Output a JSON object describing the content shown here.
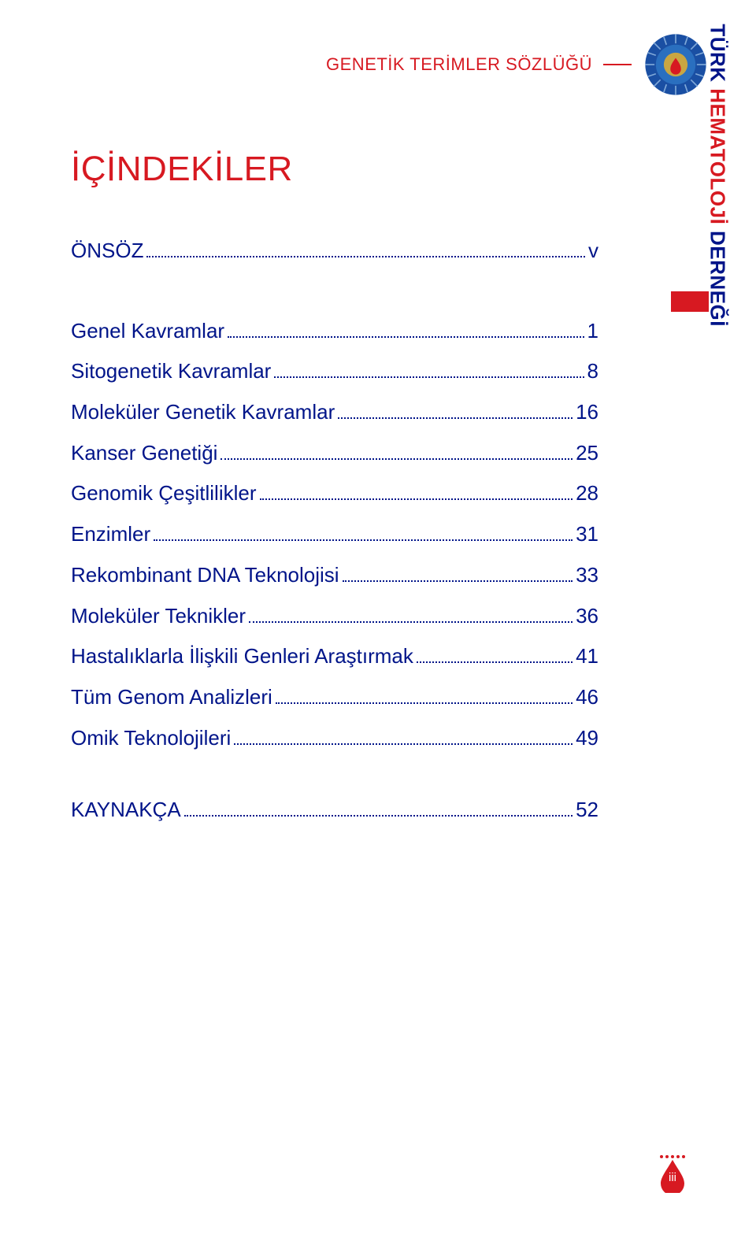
{
  "header": {
    "running_title": "GENETİK TERİMLER SÖZLÜĞÜ",
    "title_color": "#d71921",
    "line_color": "#d71921"
  },
  "emblem": {
    "outer_color": "#1a4fa3",
    "mid_color": "#2a6fbf",
    "center_color": "#c8a642",
    "drop_color": "#d71921"
  },
  "main_title": {
    "text": "İÇİNDEKİLER",
    "color": "#d71921",
    "fontsize": 44
  },
  "toc": {
    "text_color": "#001489",
    "fontsize": 26,
    "dot_color": "#001489",
    "sections": [
      {
        "label": "ÖNSÖZ",
        "page": "v",
        "gap_after": "lg"
      },
      {
        "label": "Genel Kavramlar",
        "page": "1"
      },
      {
        "label": "Sitogenetik Kavramlar",
        "page": "8"
      },
      {
        "label": "Moleküler Genetik Kavramlar",
        "page": "16"
      },
      {
        "label": "Kanser Genetiği",
        "page": "25"
      },
      {
        "label": "Genomik Çeşitlilikler",
        "page": "28"
      },
      {
        "label": "Enzimler",
        "page": "31"
      },
      {
        "label": "Rekombinant DNA Teknolojisi",
        "page": "33"
      },
      {
        "label": "Moleküler Teknikler",
        "page": "36"
      },
      {
        "label": "Hastalıklarla İlişkili Genleri Araştırmak",
        "page": "41"
      },
      {
        "label": "Tüm Genom Analizleri",
        "page": "46"
      },
      {
        "label": "Omik Teknolojileri",
        "page": "49",
        "gap_after": "sm"
      },
      {
        "label": "KAYNAKÇA",
        "page": "52"
      }
    ]
  },
  "sideband": {
    "tab_color": "#d71921",
    "part1": "TÜRK ",
    "part2": "HEMATOLOJİ ",
    "part3": "DERNEĞİ",
    "color1": "#001489",
    "color2": "#d71921"
  },
  "footer": {
    "drop_color": "#d71921",
    "dot_color": "#d71921",
    "page_number": "iii",
    "page_number_color": "#ffffff"
  }
}
